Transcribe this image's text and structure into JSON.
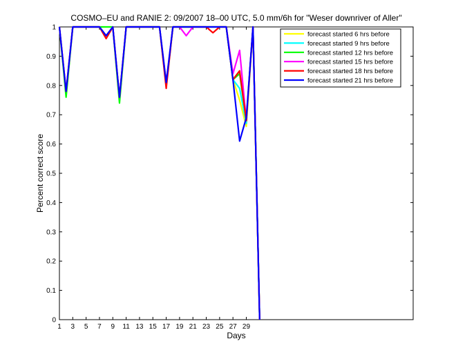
{
  "chart_data": {
    "type": "line",
    "title": "COSMO–EU and RANIE 2: 09/2007 18–00 UTC, 5.0 mm/6h for \"Weser downriver of Aller\"",
    "xlabel": "Days",
    "ylabel": "Percent correct score",
    "xlim": [
      1,
      54
    ],
    "ylim": [
      0,
      1
    ],
    "xticks": [
      1,
      3,
      5,
      7,
      9,
      11,
      13,
      15,
      17,
      19,
      21,
      23,
      25,
      27,
      29
    ],
    "yticks": [
      0,
      0.1,
      0.2,
      0.3,
      0.4,
      0.5,
      0.6,
      0.7,
      0.8,
      0.9,
      1
    ],
    "ytick_labels": [
      "0",
      "0.1",
      "0.2",
      "0.3",
      "0.4",
      "0.5",
      "0.6",
      "0.7",
      "0.8",
      "0.9",
      "1"
    ],
    "grid": false,
    "legend_position": "top-right",
    "x": [
      1,
      2,
      3,
      4,
      5,
      6,
      7,
      8,
      9,
      10,
      11,
      12,
      13,
      14,
      15,
      16,
      17,
      18,
      19,
      20,
      21,
      22,
      23,
      24,
      25,
      26,
      27,
      28,
      29,
      30,
      31
    ],
    "series": [
      {
        "name": "forecast started 6 hrs before",
        "color": "#ffff00",
        "values": [
          1,
          0.77,
          1,
          1,
          1,
          1,
          1,
          0.97,
          1,
          0.75,
          1,
          1,
          1,
          1,
          1,
          1,
          0.8,
          1,
          1,
          1,
          1,
          1,
          1,
          1,
          1,
          1,
          0.82,
          0.75,
          0.66,
          1,
          0
        ]
      },
      {
        "name": "forecast started 9 hrs before",
        "color": "#00ffff",
        "values": [
          1,
          0.77,
          1,
          1,
          1,
          1,
          1,
          0.97,
          1,
          0.75,
          1,
          1,
          1,
          1,
          1,
          1,
          0.8,
          1,
          1,
          1,
          1,
          1,
          1,
          1,
          1,
          1,
          0.82,
          0.79,
          0.67,
          1,
          0
        ]
      },
      {
        "name": "forecast started 12 hrs before",
        "color": "#00ff00",
        "values": [
          1,
          0.76,
          1,
          1,
          1,
          1,
          1,
          1,
          1,
          0.74,
          1,
          1,
          1,
          1,
          1,
          1,
          0.8,
          1,
          1,
          1,
          1,
          1,
          1,
          1,
          1,
          1,
          0.82,
          0.84,
          0.68,
          1,
          0
        ]
      },
      {
        "name": "forecast started 15 hrs before",
        "color": "#ff00ff",
        "values": [
          1,
          0.78,
          1,
          1,
          1,
          1,
          1,
          0.97,
          1,
          0.76,
          1,
          1,
          1,
          1,
          1,
          1,
          0.81,
          1,
          1,
          0.97,
          1,
          1,
          1,
          1,
          1,
          1,
          0.84,
          0.92,
          0.68,
          1,
          0
        ]
      },
      {
        "name": "forecast started 18 hrs before",
        "color": "#ff0000",
        "values": [
          1,
          0.78,
          1,
          1,
          1,
          1,
          1,
          0.96,
          1,
          0.76,
          1,
          1,
          1,
          1,
          1,
          1,
          0.79,
          1,
          1,
          1,
          1,
          1,
          1,
          0.98,
          1,
          1,
          0.82,
          0.85,
          0.68,
          1,
          0
        ]
      },
      {
        "name": "forecast started 21 hrs before",
        "color": "#0000ff",
        "values": [
          1,
          0.78,
          1,
          1,
          1,
          1,
          1,
          0.97,
          1,
          0.76,
          1,
          1,
          1,
          1,
          1,
          1,
          0.81,
          1,
          1,
          1,
          1,
          1,
          1,
          1,
          1,
          1,
          0.82,
          0.61,
          0.69,
          1,
          0
        ]
      }
    ]
  }
}
